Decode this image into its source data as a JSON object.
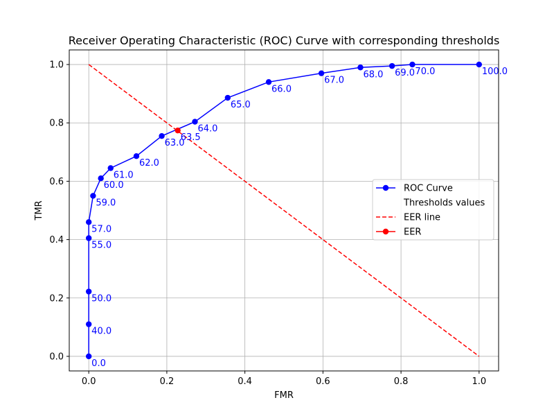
{
  "chart_data": {
    "type": "line",
    "title": "Receiver Operating Characteristic (ROC) Curve with corresponding thresholds",
    "xlabel": "FMR",
    "ylabel": "TMR",
    "xlim": [
      -0.05,
      1.05
    ],
    "ylim": [
      -0.05,
      1.05
    ],
    "xticks": [
      0.0,
      0.2,
      0.4,
      0.6,
      0.8,
      1.0
    ],
    "yticks": [
      0.0,
      0.2,
      0.4,
      0.6,
      0.8,
      1.0
    ],
    "xtick_labels": [
      "0.0",
      "0.2",
      "0.4",
      "0.6",
      "0.8",
      "1.0"
    ],
    "ytick_labels": [
      "0.0",
      "0.2",
      "0.4",
      "0.6",
      "0.8",
      "1.0"
    ],
    "grid": true,
    "legend_position": "center-right",
    "series": [
      {
        "name": "ROC Curve",
        "color": "#0000ff",
        "style": "solid-markers",
        "points": [
          {
            "x": 0.0,
            "y": 0.0,
            "label": "0.0"
          },
          {
            "x": 0.0,
            "y": 0.11,
            "label": "40.0"
          },
          {
            "x": 0.0,
            "y": 0.222,
            "label": "50.0"
          },
          {
            "x": 0.0,
            "y": 0.405,
            "label": "55.0"
          },
          {
            "x": 0.0,
            "y": 0.46,
            "label": "57.0"
          },
          {
            "x": 0.011,
            "y": 0.55,
            "label": "59.0"
          },
          {
            "x": 0.031,
            "y": 0.61,
            "label": "60.0"
          },
          {
            "x": 0.056,
            "y": 0.645,
            "label": "61.0"
          },
          {
            "x": 0.122,
            "y": 0.686,
            "label": "62.0"
          },
          {
            "x": 0.187,
            "y": 0.755,
            "label": "63.0"
          },
          {
            "x": 0.272,
            "y": 0.804,
            "label": "64.0"
          },
          {
            "x": 0.356,
            "y": 0.886,
            "label": "65.0"
          },
          {
            "x": 0.461,
            "y": 0.94,
            "label": "66.0"
          },
          {
            "x": 0.596,
            "y": 0.97,
            "label": "67.0"
          },
          {
            "x": 0.696,
            "y": 0.99,
            "label": "68.0"
          },
          {
            "x": 0.777,
            "y": 0.995,
            "label": "69.0"
          },
          {
            "x": 0.829,
            "y": 1.0,
            "label": "70.0"
          },
          {
            "x": 1.0,
            "y": 1.0,
            "label": "100.0"
          }
        ]
      },
      {
        "name": "Thresholds values",
        "color": "#0000ff",
        "style": "text-only"
      },
      {
        "name": "EER line",
        "color": "#ff0000",
        "style": "dashed",
        "points": [
          {
            "x": 0.0,
            "y": 1.0
          },
          {
            "x": 1.0,
            "y": 0.0
          }
        ]
      },
      {
        "name": "EER",
        "color": "#ff0000",
        "style": "marker",
        "points": [
          {
            "x": 0.228,
            "y": 0.774,
            "label": "63.5"
          }
        ]
      }
    ]
  }
}
